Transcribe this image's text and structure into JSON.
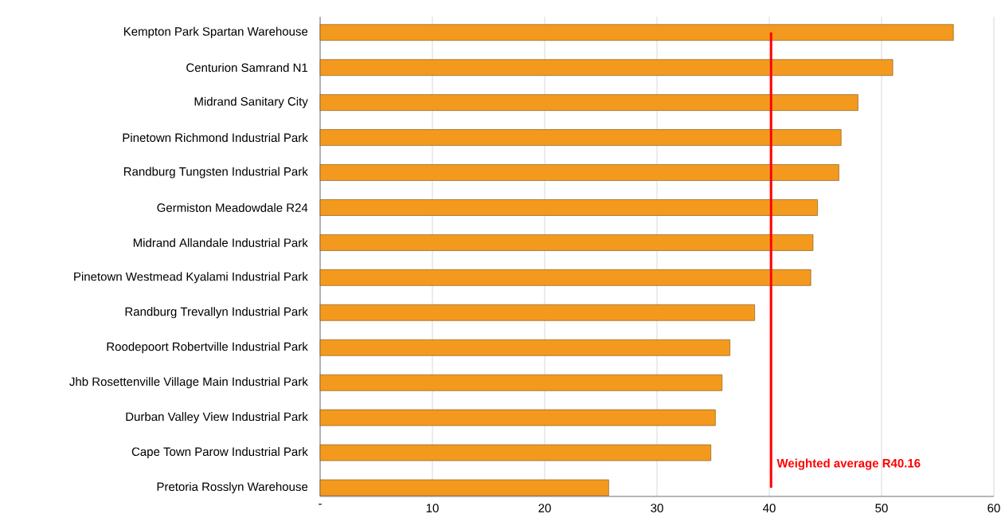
{
  "chart_data": {
    "type": "bar",
    "orientation": "horizontal",
    "categories": [
      "Kempton Park Spartan Warehouse",
      "Centurion Samrand N1",
      "Midrand Sanitary City",
      "Pinetown Richmond Industrial Park",
      "Randburg Tungsten Industrial Park",
      "Germiston Meadowdale R24",
      "Midrand Allandale Industrial Park",
      "Pinetown Westmead Kyalami Industrial Park",
      "Randburg Trevallyn Industrial Park",
      "Roodepoort Robertville Industrial Park",
      "Jhb Rosettenville Village Main Industrial Park",
      "Durban Valley View Industrial Park",
      "Cape Town Parow Industrial Park",
      "Pretoria Rosslyn Warehouse"
    ],
    "values": [
      56.4,
      51.0,
      47.9,
      46.4,
      46.2,
      44.3,
      43.9,
      43.7,
      38.7,
      36.5,
      35.8,
      35.2,
      34.8,
      25.7
    ],
    "color": "#f39a1e",
    "xlim": [
      0,
      60
    ],
    "xticks": [
      {
        "value": 0,
        "label": "-"
      },
      10,
      20,
      30,
      40,
      50,
      60
    ],
    "grid": "x",
    "ref_lines": [
      {
        "axis": "x",
        "value": 40.16,
        "label": "Weighted average R40.16",
        "color": "#ff0000"
      }
    ]
  }
}
